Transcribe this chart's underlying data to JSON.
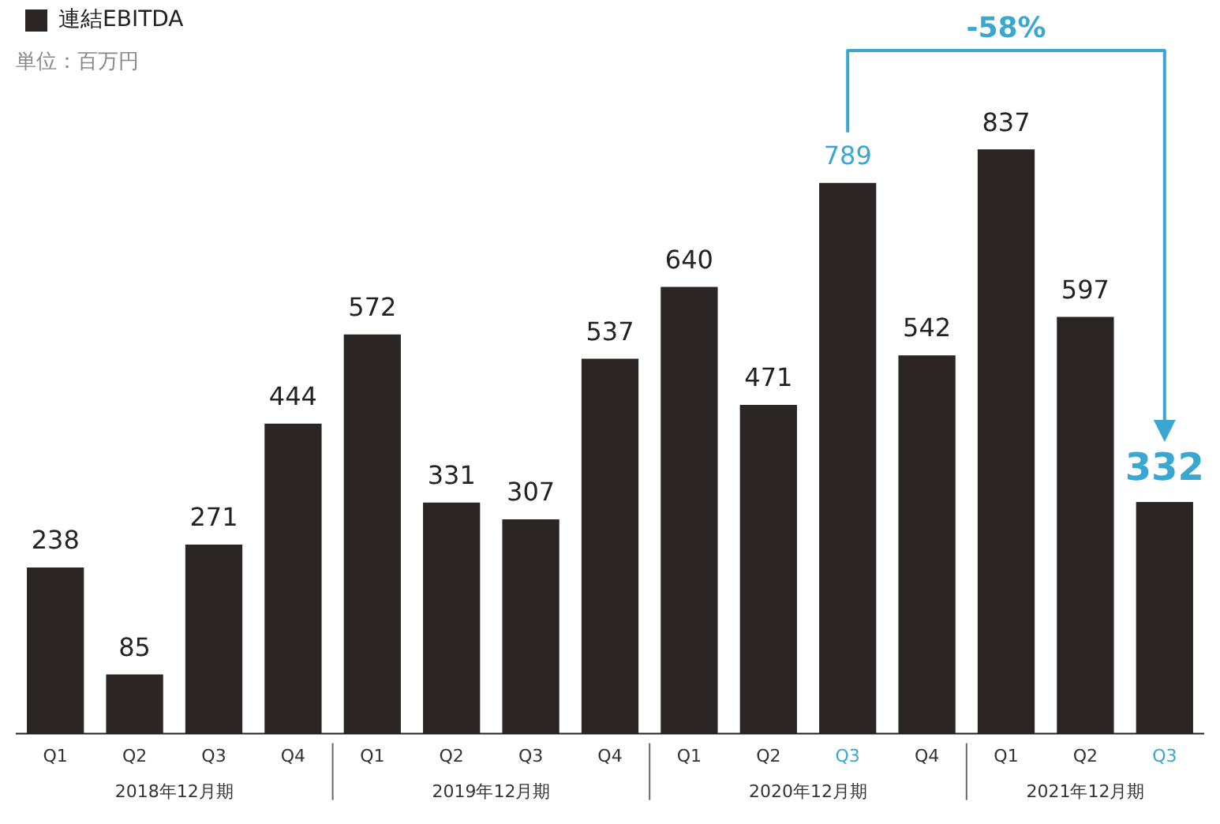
{
  "chart_data": {
    "type": "bar",
    "subtitle": "単位：百万円",
    "categories": [
      "Q1",
      "Q2",
      "Q3",
      "Q4",
      "Q1",
      "Q2",
      "Q3",
      "Q4",
      "Q1",
      "Q2",
      "Q3",
      "Q4",
      "Q1",
      "Q2",
      "Q3"
    ],
    "series": [
      {
        "name": "連結EBITDA",
        "color": "#2b2525",
        "values": [
          238,
          85,
          271,
          444,
          572,
          331,
          307,
          537,
          640,
          471,
          789,
          542,
          837,
          597,
          332
        ]
      }
    ],
    "data_labels": true,
    "legend": "top left",
    "grid": false,
    "annotations": [
      "2018年12月期",
      "2019年12月期",
      "2020年12月期",
      "2021年12月期",
      "-58%"
    ]
  }
}
